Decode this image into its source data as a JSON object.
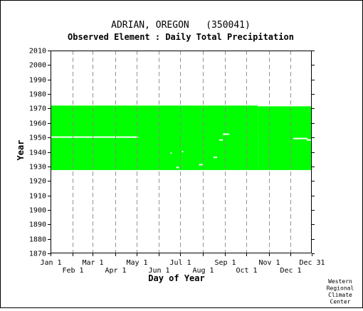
{
  "chart_data": {
    "type": "heatmap",
    "title": "ADRIAN, OREGON   (350041)",
    "subtitle": "Observed Element : Daily Total Precipitation",
    "xlabel": "Day of Year",
    "ylabel": "Year",
    "credit": [
      "Western",
      "Regional",
      "Climate",
      "Center"
    ],
    "xlim": [
      1,
      365
    ],
    "ylim": [
      1870,
      2010
    ],
    "y_ticks": [
      2010,
      2000,
      1990,
      1980,
      1970,
      1960,
      1950,
      1940,
      1930,
      1920,
      1910,
      1900,
      1890,
      1880,
      1870
    ],
    "x_ticks": [
      {
        "label": "Jan 1",
        "day": 1,
        "row": 0
      },
      {
        "label": "Feb 1",
        "day": 32,
        "row": 1
      },
      {
        "label": "Mar 1",
        "day": 60,
        "row": 0
      },
      {
        "label": "Apr 1",
        "day": 91,
        "row": 1
      },
      {
        "label": "May 1",
        "day": 121,
        "row": 0
      },
      {
        "label": "Jun 1",
        "day": 152,
        "row": 1
      },
      {
        "label": "Jul 1",
        "day": 182,
        "row": 0
      },
      {
        "label": "Aug 1",
        "day": 213,
        "row": 1
      },
      {
        "label": "Sep 1",
        "day": 244,
        "row": 0
      },
      {
        "label": "Oct 1",
        "day": 274,
        "row": 1
      },
      {
        "label": "Nov 1",
        "day": 305,
        "row": 0
      },
      {
        "label": "Dec 1",
        "day": 335,
        "row": 1
      },
      {
        "label": "Dec 31",
        "day": 365,
        "row": 0
      }
    ],
    "data_color": "#00ff00",
    "record": {
      "start_year": 1927.5,
      "end_year": 1972,
      "end_year_late": 1971.5,
      "late_from_day": 290
    },
    "missing_segments": [
      {
        "year": 1950,
        "start_day": 1,
        "end_day": 123
      },
      {
        "year": 1949,
        "start_day": 339,
        "end_day": 359
      },
      {
        "year": 1948,
        "start_day": 358,
        "end_day": 365
      },
      {
        "year": 1952,
        "start_day": 241,
        "end_day": 250
      },
      {
        "year": 1948,
        "start_day": 236,
        "end_day": 241
      },
      {
        "year": 1936,
        "start_day": 228,
        "end_day": 233
      },
      {
        "year": 1931,
        "start_day": 208,
        "end_day": 213
      },
      {
        "year": 1929,
        "start_day": 176,
        "end_day": 180
      },
      {
        "year": 1939,
        "start_day": 168,
        "end_day": 170
      },
      {
        "year": 1940,
        "start_day": 184,
        "end_day": 186
      }
    ]
  }
}
